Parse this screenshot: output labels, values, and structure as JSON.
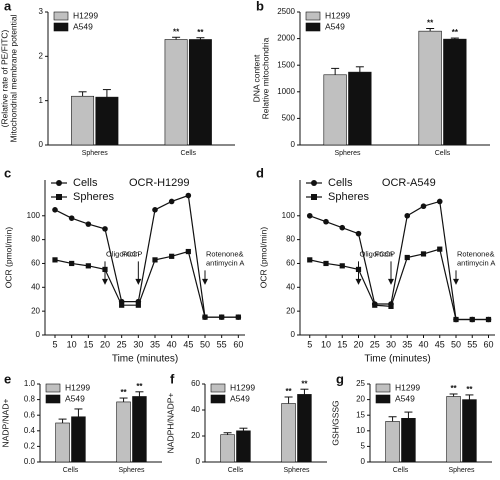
{
  "chart_data": [
    {
      "type": "bar",
      "label": "a",
      "ylabel": [
        "Mitochondrial membrane potential",
        "(Relative rate of PE/FITC)"
      ],
      "categories": [
        "Spheres",
        "Cells"
      ],
      "ylim": [
        0,
        3
      ],
      "yticks": [
        0,
        1,
        2,
        3
      ],
      "series": [
        {
          "name": "H1299",
          "color": "#c0c0c0",
          "values": [
            1.1,
            2.38
          ],
          "errors": [
            0.1,
            0.05
          ],
          "significance": [
            null,
            "**"
          ]
        },
        {
          "name": "A549",
          "color": "#111111",
          "values": [
            1.08,
            2.38
          ],
          "errors": [
            0.17,
            0.04
          ],
          "significance": [
            null,
            "**"
          ]
        }
      ]
    },
    {
      "type": "bar",
      "label": "b",
      "ylabel": [
        "Relative mitochondria",
        "DNA content"
      ],
      "categories": [
        "Spheres",
        "Cells"
      ],
      "ylim": [
        0,
        2500
      ],
      "yticks": [
        0,
        500,
        1000,
        1500,
        2000,
        2500
      ],
      "series": [
        {
          "name": "H1299",
          "color": "#c0c0c0",
          "values": [
            1320,
            2140
          ],
          "errors": [
            120,
            50
          ],
          "significance": [
            null,
            "**"
          ]
        },
        {
          "name": "A549",
          "color": "#111111",
          "values": [
            1370,
            1990
          ],
          "errors": [
            100,
            20
          ],
          "significance": [
            null,
            "**"
          ]
        }
      ]
    },
    {
      "type": "line",
      "label": "c",
      "title": "OCR-H1299",
      "xlabel": "Time (minutes)",
      "ylabel": [
        "OCR (pmol/min)"
      ],
      "x": [
        5,
        10,
        15,
        20,
        25,
        30,
        35,
        40,
        45,
        50,
        55,
        60
      ],
      "xlim": [
        2,
        62
      ],
      "xticks": [
        5,
        10,
        15,
        20,
        25,
        30,
        35,
        40,
        45,
        50,
        55,
        60
      ],
      "ylim": [
        0,
        130
      ],
      "yticks": [
        0,
        20,
        40,
        60,
        80,
        100
      ],
      "series": [
        {
          "name": "Cells",
          "marker": "circle",
          "color": "#111111",
          "values": [
            105,
            98,
            93,
            89,
            28,
            28,
            105,
            112,
            117,
            15,
            15,
            15
          ]
        },
        {
          "name": "Spheres",
          "marker": "square",
          "color": "#111111",
          "values": [
            63,
            60,
            58,
            55,
            25,
            25,
            63,
            66,
            70,
            15,
            15,
            15
          ]
        }
      ],
      "annotations": [
        {
          "text": [
            "Oligomcin"
          ],
          "x": 20
        },
        {
          "text": [
            "FCCP"
          ],
          "x": 30
        },
        {
          "text": [
            "Rotenone&",
            "antimycin A"
          ],
          "x": 50
        }
      ]
    },
    {
      "type": "line",
      "label": "d",
      "title": "OCR-A549",
      "xlabel": "Time (minutes)",
      "ylabel": [
        "OCR (pmol/min)"
      ],
      "x": [
        5,
        10,
        15,
        20,
        25,
        30,
        35,
        40,
        45,
        50,
        55,
        60
      ],
      "xlim": [
        2,
        62
      ],
      "xticks": [
        5,
        10,
        15,
        20,
        25,
        30,
        35,
        40,
        45,
        50,
        55,
        60
      ],
      "ylim": [
        0,
        130
      ],
      "yticks": [
        0,
        20,
        40,
        60,
        80,
        100
      ],
      "series": [
        {
          "name": "Cells",
          "marker": "circle",
          "color": "#111111",
          "values": [
            100,
            95,
            90,
            85,
            26,
            26,
            100,
            108,
            112,
            13,
            13,
            13
          ]
        },
        {
          "name": "Spheres",
          "marker": "square",
          "color": "#111111",
          "values": [
            63,
            60,
            58,
            55,
            25,
            24,
            65,
            68,
            72,
            13,
            13,
            13
          ]
        }
      ],
      "annotations": [
        {
          "text": [
            "Oligomcin"
          ],
          "x": 20
        },
        {
          "text": [
            "FCCP"
          ],
          "x": 30
        },
        {
          "text": [
            "Rotenone&",
            "antimycin A"
          ],
          "x": 50
        }
      ]
    },
    {
      "type": "bar",
      "label": "e",
      "ylabel": [
        "NADP/NAD+"
      ],
      "categories": [
        "Cells",
        "Spheres"
      ],
      "ylim": [
        0,
        1.0
      ],
      "yticks": [
        {
          "value": 0,
          "label": "0.0"
        },
        0.2,
        0.4,
        0.6,
        0.8,
        {
          "value": 1.0,
          "label": "1.0"
        }
      ],
      "series": [
        {
          "name": "H1299",
          "color": "#c0c0c0",
          "values": [
            0.5,
            0.77
          ],
          "errors": [
            0.05,
            0.05
          ],
          "significance": [
            null,
            "**"
          ]
        },
        {
          "name": "A549",
          "color": "#111111",
          "values": [
            0.58,
            0.84
          ],
          "errors": [
            0.1,
            0.06
          ],
          "significance": [
            null,
            "**"
          ]
        }
      ]
    },
    {
      "type": "bar",
      "label": "f",
      "ylabel": [
        "NADPH/NADP+"
      ],
      "categories": [
        "Cells",
        "Spheres"
      ],
      "ylim": [
        0,
        60
      ],
      "yticks": [
        0,
        20,
        40,
        60
      ],
      "series": [
        {
          "name": "H1299",
          "color": "#c0c0c0",
          "values": [
            21,
            45
          ],
          "errors": [
            1.5,
            5
          ],
          "significance": [
            null,
            "**"
          ]
        },
        {
          "name": "A549",
          "color": "#111111",
          "values": [
            24,
            52
          ],
          "errors": [
            2,
            4
          ],
          "significance": [
            null,
            "**"
          ]
        }
      ]
    },
    {
      "type": "bar",
      "label": "g",
      "ylabel": [
        "GSH/GSSG"
      ],
      "categories": [
        "Cells",
        "Spheres"
      ],
      "ylim": [
        0,
        25
      ],
      "yticks": [
        0,
        5,
        10,
        15,
        20,
        25
      ],
      "series": [
        {
          "name": "H1299",
          "color": "#c0c0c0",
          "values": [
            13,
            21
          ],
          "errors": [
            1.5,
            0.8
          ],
          "significance": [
            null,
            "**"
          ]
        },
        {
          "name": "A549",
          "color": "#111111",
          "values": [
            14,
            20
          ],
          "errors": [
            2,
            1.5
          ],
          "significance": [
            null,
            "**"
          ]
        }
      ]
    }
  ]
}
